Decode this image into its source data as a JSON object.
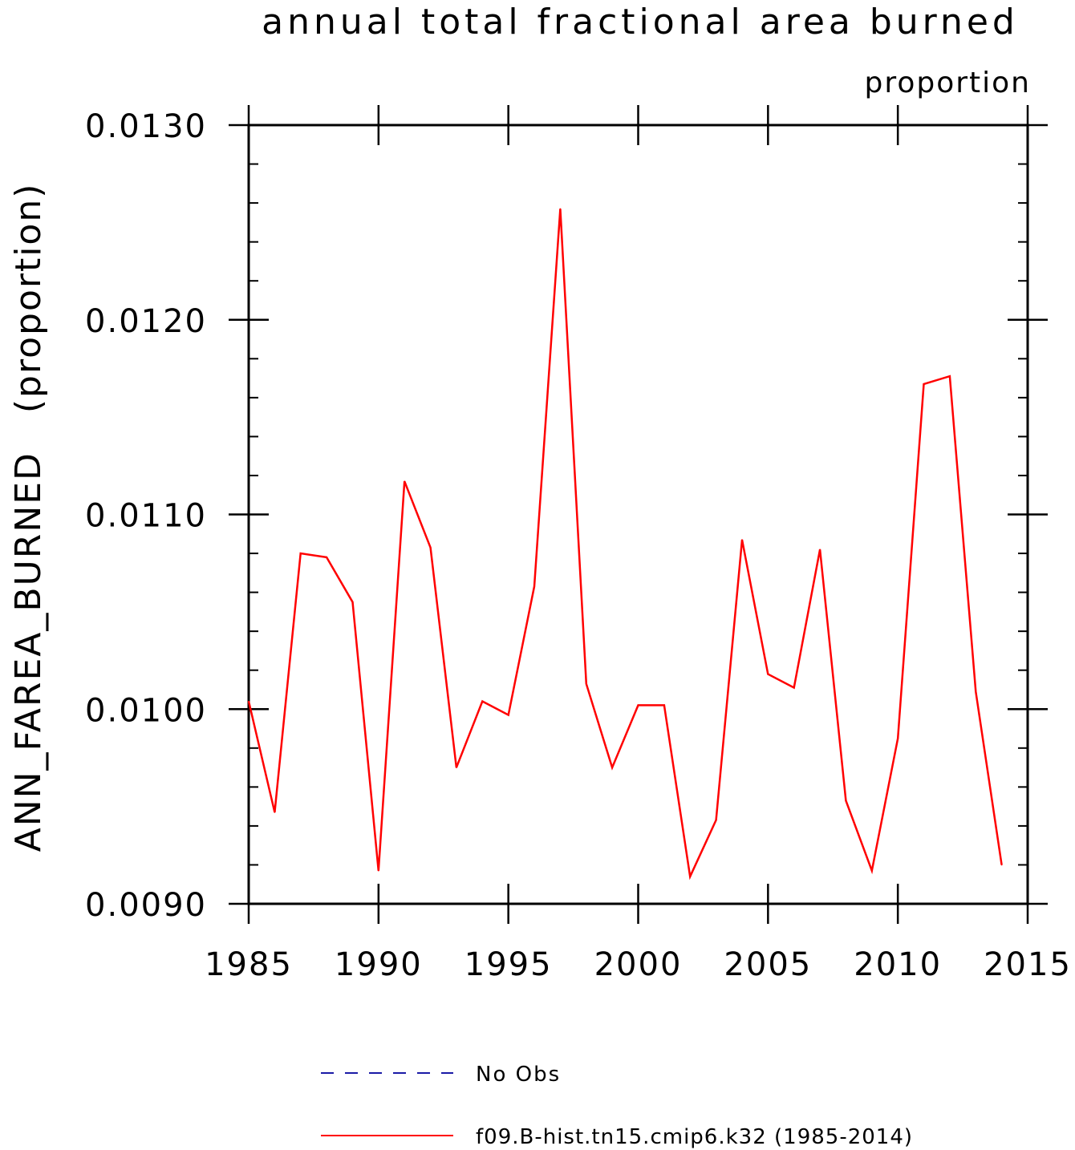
{
  "chart_data": {
    "type": "line",
    "title": "annual total fractional area burned",
    "subtitle": "proportion",
    "ylabel": "ANN_FAREA_BURNED   (proportion)",
    "xlabel": "",
    "xlim": [
      1985,
      2015
    ],
    "ylim": [
      0.009,
      0.013
    ],
    "x_ticks": [
      "1985",
      "1990",
      "1995",
      "2000",
      "2005",
      "2010",
      "2015"
    ],
    "y_ticks": [
      "0.0090",
      "0.0100",
      "0.0110",
      "0.0120",
      "0.0130"
    ],
    "grid": false,
    "legend_position": "bottom",
    "legend": [
      {
        "label": "No Obs",
        "color": "#1a1aa6",
        "style": "dashed"
      },
      {
        "label": "f09.B-hist.tn15.cmip6.k32 (1985-2014)",
        "color": "#ff0000",
        "style": "solid"
      }
    ],
    "series": [
      {
        "name": "f09.B-hist.tn15.cmip6.k32 (1985-2014)",
        "color": "#ff0000",
        "x": [
          1985,
          1986,
          1987,
          1988,
          1989,
          1990,
          1991,
          1992,
          1993,
          1994,
          1995,
          1996,
          1997,
          1998,
          1999,
          2000,
          2001,
          2002,
          2003,
          2004,
          2005,
          2006,
          2007,
          2008,
          2009,
          2010,
          2011,
          2012,
          2013,
          2014
        ],
        "values": [
          0.01004,
          0.00947,
          0.0108,
          0.01078,
          0.01055,
          0.00917,
          0.01117,
          0.01083,
          0.0097,
          0.01004,
          0.00997,
          0.01063,
          0.01257,
          0.01013,
          0.0097,
          0.01002,
          0.01002,
          0.00914,
          0.00943,
          0.01087,
          0.01018,
          0.01011,
          0.01082,
          0.00953,
          0.00917,
          0.00985,
          0.01167,
          0.01171,
          0.01009,
          0.0092
        ]
      }
    ]
  }
}
